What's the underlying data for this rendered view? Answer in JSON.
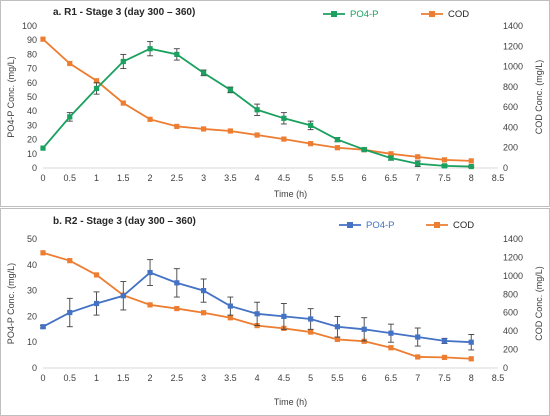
{
  "chart_data": [
    {
      "type": "line",
      "title": "a. R1 - Stage 3 (day 300 – 360)",
      "xlabel": "Time (h)",
      "ylabel": "PO4-P Conc. (mg/L)",
      "y2label": "COD Conc. (mg/L)",
      "xlim": [
        0,
        8.5
      ],
      "ylim": [
        0,
        100
      ],
      "y2lim": [
        0,
        1400
      ],
      "xticks": [
        "0",
        "0.5",
        "1",
        "1.5",
        "2",
        "2.5",
        "3",
        "3.5",
        "4",
        "4.5",
        "5",
        "5.5",
        "6",
        "6.5",
        "7",
        "7.5",
        "8",
        "8.5"
      ],
      "yticks": [
        "0",
        "10",
        "20",
        "30",
        "40",
        "50",
        "60",
        "70",
        "80",
        "90",
        "100"
      ],
      "y2ticks": [
        "0",
        "200",
        "400",
        "600",
        "800",
        "1000",
        "1200",
        "1400"
      ],
      "grid": false,
      "legend_position": "top",
      "x": [
        0,
        0.5,
        1,
        1.5,
        2,
        2.5,
        3,
        3.5,
        4,
        4.5,
        5,
        5.5,
        6,
        6.5,
        7,
        7.5,
        8
      ],
      "series": [
        {
          "name": "PO4-P",
          "axis": "left",
          "color": "#1aa15f",
          "marker": "square",
          "values": [
            14,
            36,
            56,
            75,
            84,
            80,
            67,
            55,
            41,
            35,
            30,
            20,
            13,
            7,
            3,
            1.5,
            1
          ],
          "errors": [
            0,
            3,
            4,
            5,
            5,
            4,
            2,
            2,
            4,
            4,
            3,
            1.5,
            1,
            1.5,
            2,
            1,
            0.5
          ]
        },
        {
          "name": "COD",
          "axis": "right",
          "color": "#ed7d31",
          "marker": "square",
          "values": [
            1270,
            1030,
            860,
            640,
            480,
            410,
            385,
            365,
            325,
            285,
            240,
            200,
            180,
            140,
            110,
            80,
            70
          ]
        }
      ]
    },
    {
      "type": "line",
      "title": "b. R2 - Stage 3 (day 300 – 360)",
      "xlabel": "Time (h)",
      "ylabel": "PO4-P Conc. (mg/L)",
      "y2label": "COD Conc. (mg/L)",
      "xlim": [
        0,
        8.5
      ],
      "ylim": [
        0,
        50
      ],
      "y2lim": [
        0,
        1400
      ],
      "xticks": [
        "0",
        "0.5",
        "1",
        "1.5",
        "2",
        "2.5",
        "3",
        "3.5",
        "4",
        "4.5",
        "5",
        "5.5",
        "6",
        "6.5",
        "7",
        "7.5",
        "8",
        "8.5"
      ],
      "yticks": [
        "0",
        "10",
        "20",
        "30",
        "40",
        "50"
      ],
      "y2ticks": [
        "0",
        "200",
        "400",
        "600",
        "800",
        "1000",
        "1200",
        "1400"
      ],
      "grid": false,
      "legend_position": "top",
      "x": [
        0,
        0.5,
        1,
        1.5,
        2,
        2.5,
        3,
        3.5,
        4,
        4.5,
        5,
        5.5,
        6,
        6.5,
        7,
        7.5,
        8
      ],
      "series": [
        {
          "name": "PO4-P",
          "axis": "left",
          "color": "#4472c4",
          "marker": "square",
          "values": [
            16,
            21.5,
            25,
            28,
            37,
            33,
            30,
            24,
            21,
            20,
            19,
            16,
            15,
            13.5,
            12,
            10.5,
            10
          ],
          "errors": [
            0.5,
            5.5,
            4.5,
            5.5,
            5,
            5.5,
            4.5,
            3.5,
            4.5,
            5,
            4,
            4,
            4.5,
            3.5,
            3.5,
            1,
            3
          ]
        },
        {
          "name": "COD",
          "axis": "right",
          "color": "#ed7d31",
          "marker": "square",
          "values": [
            1250,
            1165,
            1010,
            790,
            685,
            645,
            600,
            545,
            460,
            430,
            390,
            310,
            290,
            220,
            120,
            115,
            100
          ]
        }
      ]
    }
  ]
}
